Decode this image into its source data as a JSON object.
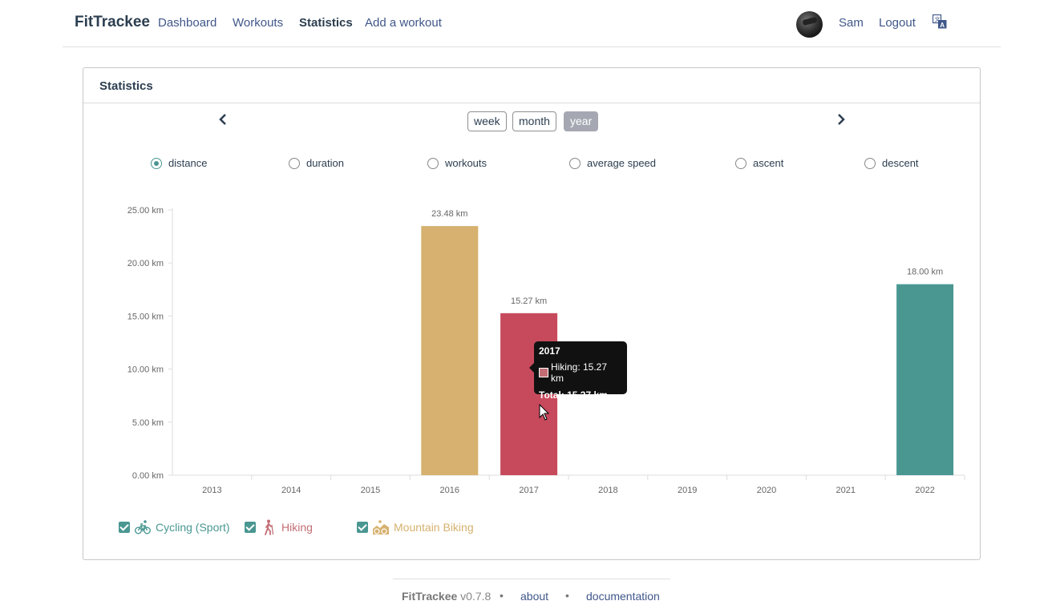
{
  "navbar": {
    "brand": "FitTrackee",
    "links": [
      "Dashboard",
      "Workouts",
      "Statistics",
      "Add a workout"
    ],
    "active_link": "Statistics",
    "user": "Sam",
    "logout": "Logout",
    "icons": {
      "avatar": "user-avatar",
      "language": "translate-icon"
    }
  },
  "card": {
    "title": "Statistics",
    "periods": [
      "week",
      "month",
      "year"
    ],
    "active_period": "year",
    "icons": {
      "prev": "chevron-left-icon",
      "next": "chevron-right-icon"
    },
    "metrics": [
      "distance",
      "duration",
      "workouts",
      "average speed",
      "ascent",
      "descent"
    ],
    "selected_metric": "distance"
  },
  "chart_data": {
    "type": "bar",
    "stacked": true,
    "categories": [
      "2013",
      "2014",
      "2015",
      "2016",
      "2017",
      "2018",
      "2019",
      "2020",
      "2021",
      "2022"
    ],
    "series": [
      {
        "name": "Cycling (Sport)",
        "color": "#4a9792",
        "values": [
          0,
          0,
          0,
          0,
          0,
          0,
          0,
          0,
          0,
          18.0
        ]
      },
      {
        "name": "Hiking",
        "color": "#c74a5c",
        "values": [
          0,
          0,
          0,
          0,
          15.27,
          0,
          0,
          0,
          0,
          0
        ]
      },
      {
        "name": "Mountain Biking",
        "color": "#d6b16f",
        "values": [
          0,
          0,
          0,
          23.48,
          0,
          0,
          0,
          0,
          0,
          0
        ]
      }
    ],
    "totals_labels": [
      "",
      "",
      "",
      "23.48 km",
      "15.27 km",
      "",
      "",
      "",
      "",
      "18.00 km"
    ],
    "y_ticks": [
      "0.00 km",
      "5.00 km",
      "10.00 km",
      "15.00 km",
      "20.00 km",
      "25.00 km"
    ],
    "ylim": [
      0,
      25
    ],
    "grid": false,
    "legend_placement": "bottom-left"
  },
  "tooltip": {
    "title": "2017",
    "line": "Hiking: 15.27 km",
    "total": "Total: 15.27 km"
  },
  "legend": [
    {
      "label": "Cycling (Sport)",
      "color": "#4a9792",
      "icon": "cycling-icon",
      "checked": true
    },
    {
      "label": "Hiking",
      "color": "#c36e74",
      "icon": "hiking-icon",
      "checked": true
    },
    {
      "label": "Mountain Biking",
      "color": "#d6b16f",
      "icon": "mountain-biking-icon",
      "checked": true
    }
  ],
  "footer": {
    "brand": "FitTrackee",
    "version": "v0.7.8",
    "links": [
      "about",
      "documentation"
    ]
  }
}
